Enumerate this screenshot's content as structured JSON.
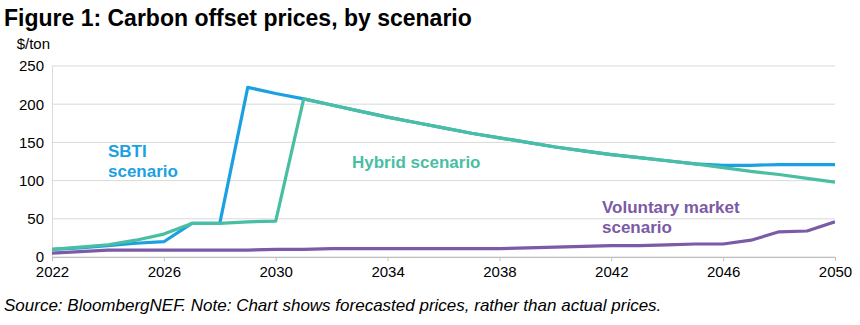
{
  "chart_data": {
    "type": "line",
    "title": "Figure 1: Carbon offset prices, by scenario",
    "y_label": "$/ton",
    "source": "Source: BloombergNEF. Note: Chart shows forecasted prices, rather than actual prices.",
    "x": [
      2022,
      2023,
      2024,
      2025,
      2026,
      2027,
      2028,
      2029,
      2030,
      2031,
      2032,
      2033,
      2034,
      2035,
      2036,
      2037,
      2038,
      2039,
      2040,
      2041,
      2042,
      2043,
      2044,
      2045,
      2046,
      2047,
      2048,
      2049,
      2050
    ],
    "xlim": [
      2022,
      2050
    ],
    "xticks": [
      2022,
      2026,
      2030,
      2034,
      2038,
      2042,
      2046,
      2050
    ],
    "ylim": [
      0,
      250
    ],
    "yticks": [
      0,
      50,
      100,
      150,
      200,
      250
    ],
    "grid": true,
    "series": [
      {
        "name": "SBTI scenario",
        "color": "#1ba1e2",
        "values": [
          10,
          12,
          15,
          18,
          20,
          44,
          44,
          222,
          214,
          207,
          199,
          191,
          183,
          176,
          169,
          162,
          156,
          150,
          144,
          139,
          134,
          130,
          126,
          122,
          120,
          120,
          121,
          121,
          121
        ]
      },
      {
        "name": "Hybrid scenario",
        "color": "#49bea3",
        "values": [
          10,
          13,
          16,
          22,
          30,
          44,
          44,
          46,
          47,
          207,
          199,
          191,
          183,
          176,
          169,
          162,
          156,
          150,
          144,
          139,
          134,
          130,
          126,
          122,
          117,
          112,
          108,
          103,
          98
        ]
      },
      {
        "name": "Voluntary market scenario",
        "color": "#7b5aa6",
        "values": [
          5,
          7,
          9,
          9,
          9,
          9,
          9,
          9,
          10,
          10,
          11,
          11,
          11,
          11,
          11,
          11,
          11,
          12,
          13,
          14,
          15,
          15,
          16,
          17,
          17,
          22,
          33,
          34,
          46
        ]
      }
    ]
  }
}
